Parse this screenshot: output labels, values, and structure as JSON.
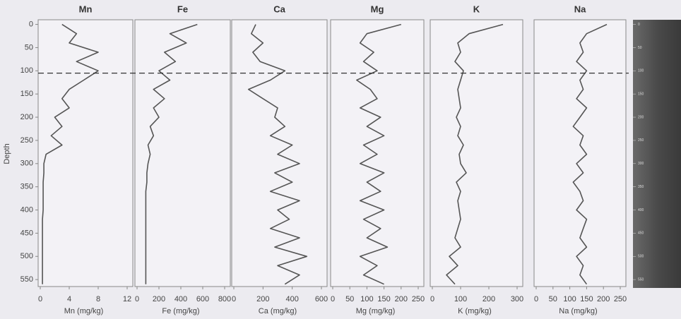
{
  "chart_data": [
    {
      "type": "line",
      "title": "Mn",
      "xlabel": "Mn (mg/kg)",
      "ylabel": "Depth",
      "color": "#555555",
      "xlim": [
        0,
        12
      ],
      "xticks": [
        0,
        4,
        8,
        12
      ],
      "ylim": [
        -10,
        565
      ],
      "yticks": [
        0,
        50,
        100,
        150,
        200,
        250,
        300,
        350,
        400,
        450,
        500,
        550
      ],
      "y": [
        0,
        20,
        40,
        60,
        80,
        100,
        120,
        140,
        160,
        180,
        200,
        220,
        240,
        260,
        280,
        300,
        320,
        340,
        360,
        380,
        400,
        420,
        440,
        460,
        480,
        500,
        520,
        540,
        560
      ],
      "values": [
        3,
        5,
        4,
        8,
        5,
        8,
        6,
        4,
        3,
        4,
        2,
        3,
        1.5,
        3,
        0.8,
        0.5,
        0.5,
        0.4,
        0.4,
        0.4,
        0.4,
        0.3,
        0.3,
        0.3,
        0.3,
        0.3,
        0.3,
        0.3,
        0.3
      ]
    },
    {
      "type": "line",
      "title": "Fe",
      "xlabel": "Fe (mg/kg)",
      "color": "#555555",
      "xlim": [
        0,
        800
      ],
      "xticks": [
        0,
        200,
        400,
        600,
        800
      ],
      "ylim": [
        -10,
        565
      ],
      "y": [
        0,
        20,
        40,
        60,
        80,
        100,
        120,
        140,
        160,
        180,
        200,
        220,
        240,
        260,
        280,
        300,
        320,
        340,
        360,
        380,
        400,
        420,
        440,
        460,
        480,
        500,
        520,
        540,
        560
      ],
      "values": [
        550,
        300,
        450,
        250,
        350,
        200,
        300,
        150,
        250,
        150,
        200,
        120,
        150,
        100,
        120,
        100,
        90,
        90,
        80,
        80,
        80,
        80,
        80,
        80,
        80,
        80,
        80,
        80,
        80
      ]
    },
    {
      "type": "line",
      "title": "Ca",
      "xlabel": "Ca (mg/kg)",
      "color": "#555555",
      "xlim": [
        0,
        600
      ],
      "xticks": [
        0,
        200,
        400,
        600
      ],
      "ylim": [
        -10,
        565
      ],
      "y": [
        0,
        20,
        40,
        60,
        80,
        100,
        120,
        140,
        160,
        180,
        200,
        220,
        240,
        260,
        280,
        300,
        320,
        340,
        360,
        380,
        400,
        420,
        440,
        460,
        480,
        500,
        520,
        540,
        560
      ],
      "values": [
        150,
        120,
        200,
        130,
        180,
        350,
        250,
        100,
        200,
        300,
        280,
        350,
        250,
        400,
        300,
        450,
        280,
        400,
        250,
        450,
        300,
        380,
        250,
        450,
        280,
        500,
        300,
        450,
        350
      ]
    },
    {
      "type": "line",
      "title": "Mg",
      "xlabel": "Mg (mg/kg)",
      "color": "#555555",
      "xlim": [
        0,
        250
      ],
      "xticks": [
        0,
        50,
        100,
        150,
        200,
        250
      ],
      "ylim": [
        -10,
        565
      ],
      "y": [
        0,
        20,
        40,
        60,
        80,
        100,
        120,
        140,
        160,
        180,
        200,
        220,
        240,
        260,
        280,
        300,
        320,
        340,
        360,
        380,
        400,
        420,
        440,
        460,
        480,
        500,
        520,
        540,
        560
      ],
      "values": [
        200,
        100,
        80,
        120,
        90,
        130,
        70,
        110,
        130,
        80,
        140,
        100,
        150,
        90,
        130,
        80,
        150,
        100,
        140,
        80,
        150,
        90,
        140,
        100,
        160,
        80,
        130,
        90,
        150
      ]
    },
    {
      "type": "line",
      "title": "K",
      "xlabel": "K (mg/kg)",
      "color": "#555555",
      "xlim": [
        0,
        300
      ],
      "xticks": [
        0,
        100,
        200,
        300
      ],
      "ylim": [
        -10,
        565
      ],
      "y": [
        0,
        20,
        40,
        60,
        80,
        100,
        120,
        140,
        160,
        180,
        200,
        220,
        240,
        260,
        280,
        300,
        320,
        340,
        360,
        380,
        400,
        420,
        440,
        460,
        480,
        500,
        520,
        540,
        560
      ],
      "values": [
        250,
        130,
        90,
        100,
        80,
        110,
        100,
        90,
        95,
        100,
        85,
        100,
        90,
        110,
        95,
        100,
        120,
        85,
        100,
        90,
        95,
        100,
        90,
        80,
        100,
        60,
        90,
        50,
        80
      ]
    },
    {
      "type": "line",
      "title": "Na",
      "xlabel": "Na (mg/kg)",
      "color": "#555555",
      "xlim": [
        0,
        250
      ],
      "xticks": [
        0,
        50,
        100,
        150,
        200,
        250
      ],
      "ylim": [
        -10,
        565
      ],
      "y": [
        0,
        20,
        40,
        60,
        80,
        100,
        120,
        140,
        160,
        180,
        200,
        220,
        240,
        260,
        280,
        300,
        320,
        340,
        360,
        380,
        400,
        420,
        440,
        460,
        480,
        500,
        520,
        540,
        560
      ],
      "values": [
        210,
        150,
        130,
        140,
        120,
        150,
        130,
        140,
        120,
        150,
        130,
        110,
        140,
        130,
        150,
        120,
        140,
        110,
        130,
        140,
        120,
        150,
        140,
        130,
        150,
        120,
        140,
        130,
        150
      ]
    }
  ],
  "reference_depth": 105,
  "core_scale": {
    "ylim": [
      -10,
      565
    ],
    "yticks": [
      0,
      50,
      100,
      150,
      200,
      250,
      300,
      350,
      400,
      450,
      500,
      550
    ]
  }
}
